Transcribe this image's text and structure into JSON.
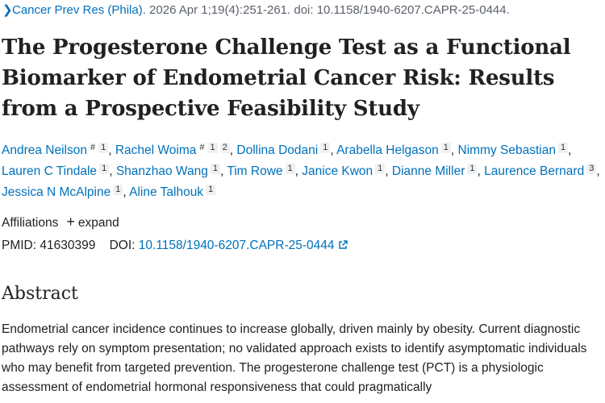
{
  "citation": {
    "journal": "Cancer Prev Res (Phila).",
    "details": " 2026 Apr 1;19(4):251-261. doi: 10.1158/1940-6207.CAPR-25-0444."
  },
  "title": "The Progesterone Challenge Test as a Functional Biomarker of Endometrial Cancer Risk: Results from a Prospective Feasibility Study",
  "authors": [
    {
      "name": "Andrea Neilson",
      "marks": [
        "#",
        "1"
      ]
    },
    {
      "name": "Rachel Woima",
      "marks": [
        "#",
        "1",
        "2"
      ]
    },
    {
      "name": "Dollina Dodani",
      "marks": [
        "1"
      ]
    },
    {
      "name": "Arabella Helgason",
      "marks": [
        "1"
      ]
    },
    {
      "name": "Nimmy Sebastian",
      "marks": [
        "1"
      ]
    },
    {
      "name": "Lauren C Tindale",
      "marks": [
        "1"
      ]
    },
    {
      "name": "Shanzhao Wang",
      "marks": [
        "1"
      ]
    },
    {
      "name": "Tim Rowe",
      "marks": [
        "1"
      ]
    },
    {
      "name": "Janice Kwon",
      "marks": [
        "1"
      ]
    },
    {
      "name": "Dianne Miller",
      "marks": [
        "1"
      ]
    },
    {
      "name": "Laurence Bernard",
      "marks": [
        "3"
      ]
    },
    {
      "name": "Jessica N McAlpine",
      "marks": [
        "1"
      ]
    },
    {
      "name": "Aline Talhouk",
      "marks": [
        "1"
      ]
    }
  ],
  "affiliations": {
    "label": "Affiliations",
    "expand_label": "expand"
  },
  "ids": {
    "pmid_label": "PMID:",
    "pmid": "41630399",
    "doi_label": "DOI:",
    "doi": "10.1158/1940-6207.CAPR-25-0444"
  },
  "abstract": {
    "heading": "Abstract",
    "text": "Endometrial cancer incidence continues to increase globally, driven mainly by obesity. Current diagnostic pathways rely on symptom presentation; no validated approach exists to identify asymptomatic individuals who may benefit from targeted prevention. The progesterone challenge test (PCT) is a physiologic assessment of endometrial hormonal responsiveness that could pragmatically"
  },
  "colors": {
    "link": "#0071bc",
    "text": "#212121"
  }
}
